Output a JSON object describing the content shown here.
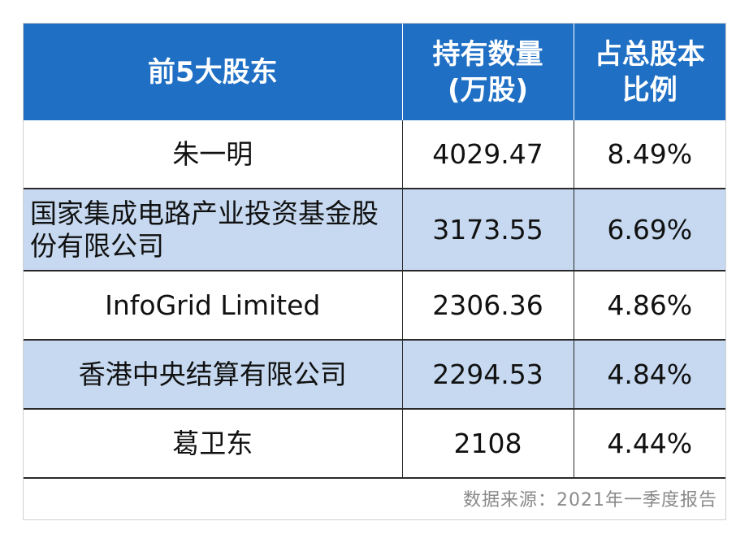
{
  "table": {
    "headers": {
      "col1": "前5大股东",
      "col2_line1": "持有数量",
      "col2_line2": "(万股)",
      "col3_line1": "占总股本",
      "col3_line2": "比例"
    },
    "rows": [
      {
        "name": "朱一明",
        "shares": "4029.47",
        "ratio": "8.49%"
      },
      {
        "name": "国家集成电路产业投资基金股份有限公司",
        "shares": "3173.55",
        "ratio": "6.69%"
      },
      {
        "name": "InfoGrid Limited",
        "shares": "2306.36",
        "ratio": "4.86%"
      },
      {
        "name": "香港中央结算有限公司",
        "shares": "2294.53",
        "ratio": "4.84%"
      },
      {
        "name": "葛卫东",
        "shares": "2108",
        "ratio": "4.44%"
      }
    ]
  },
  "source": "数据来源：2021年一季度报告",
  "colors": {
    "header_bg": "#1f6fc4",
    "alt_row_bg": "#c6d9f0"
  }
}
